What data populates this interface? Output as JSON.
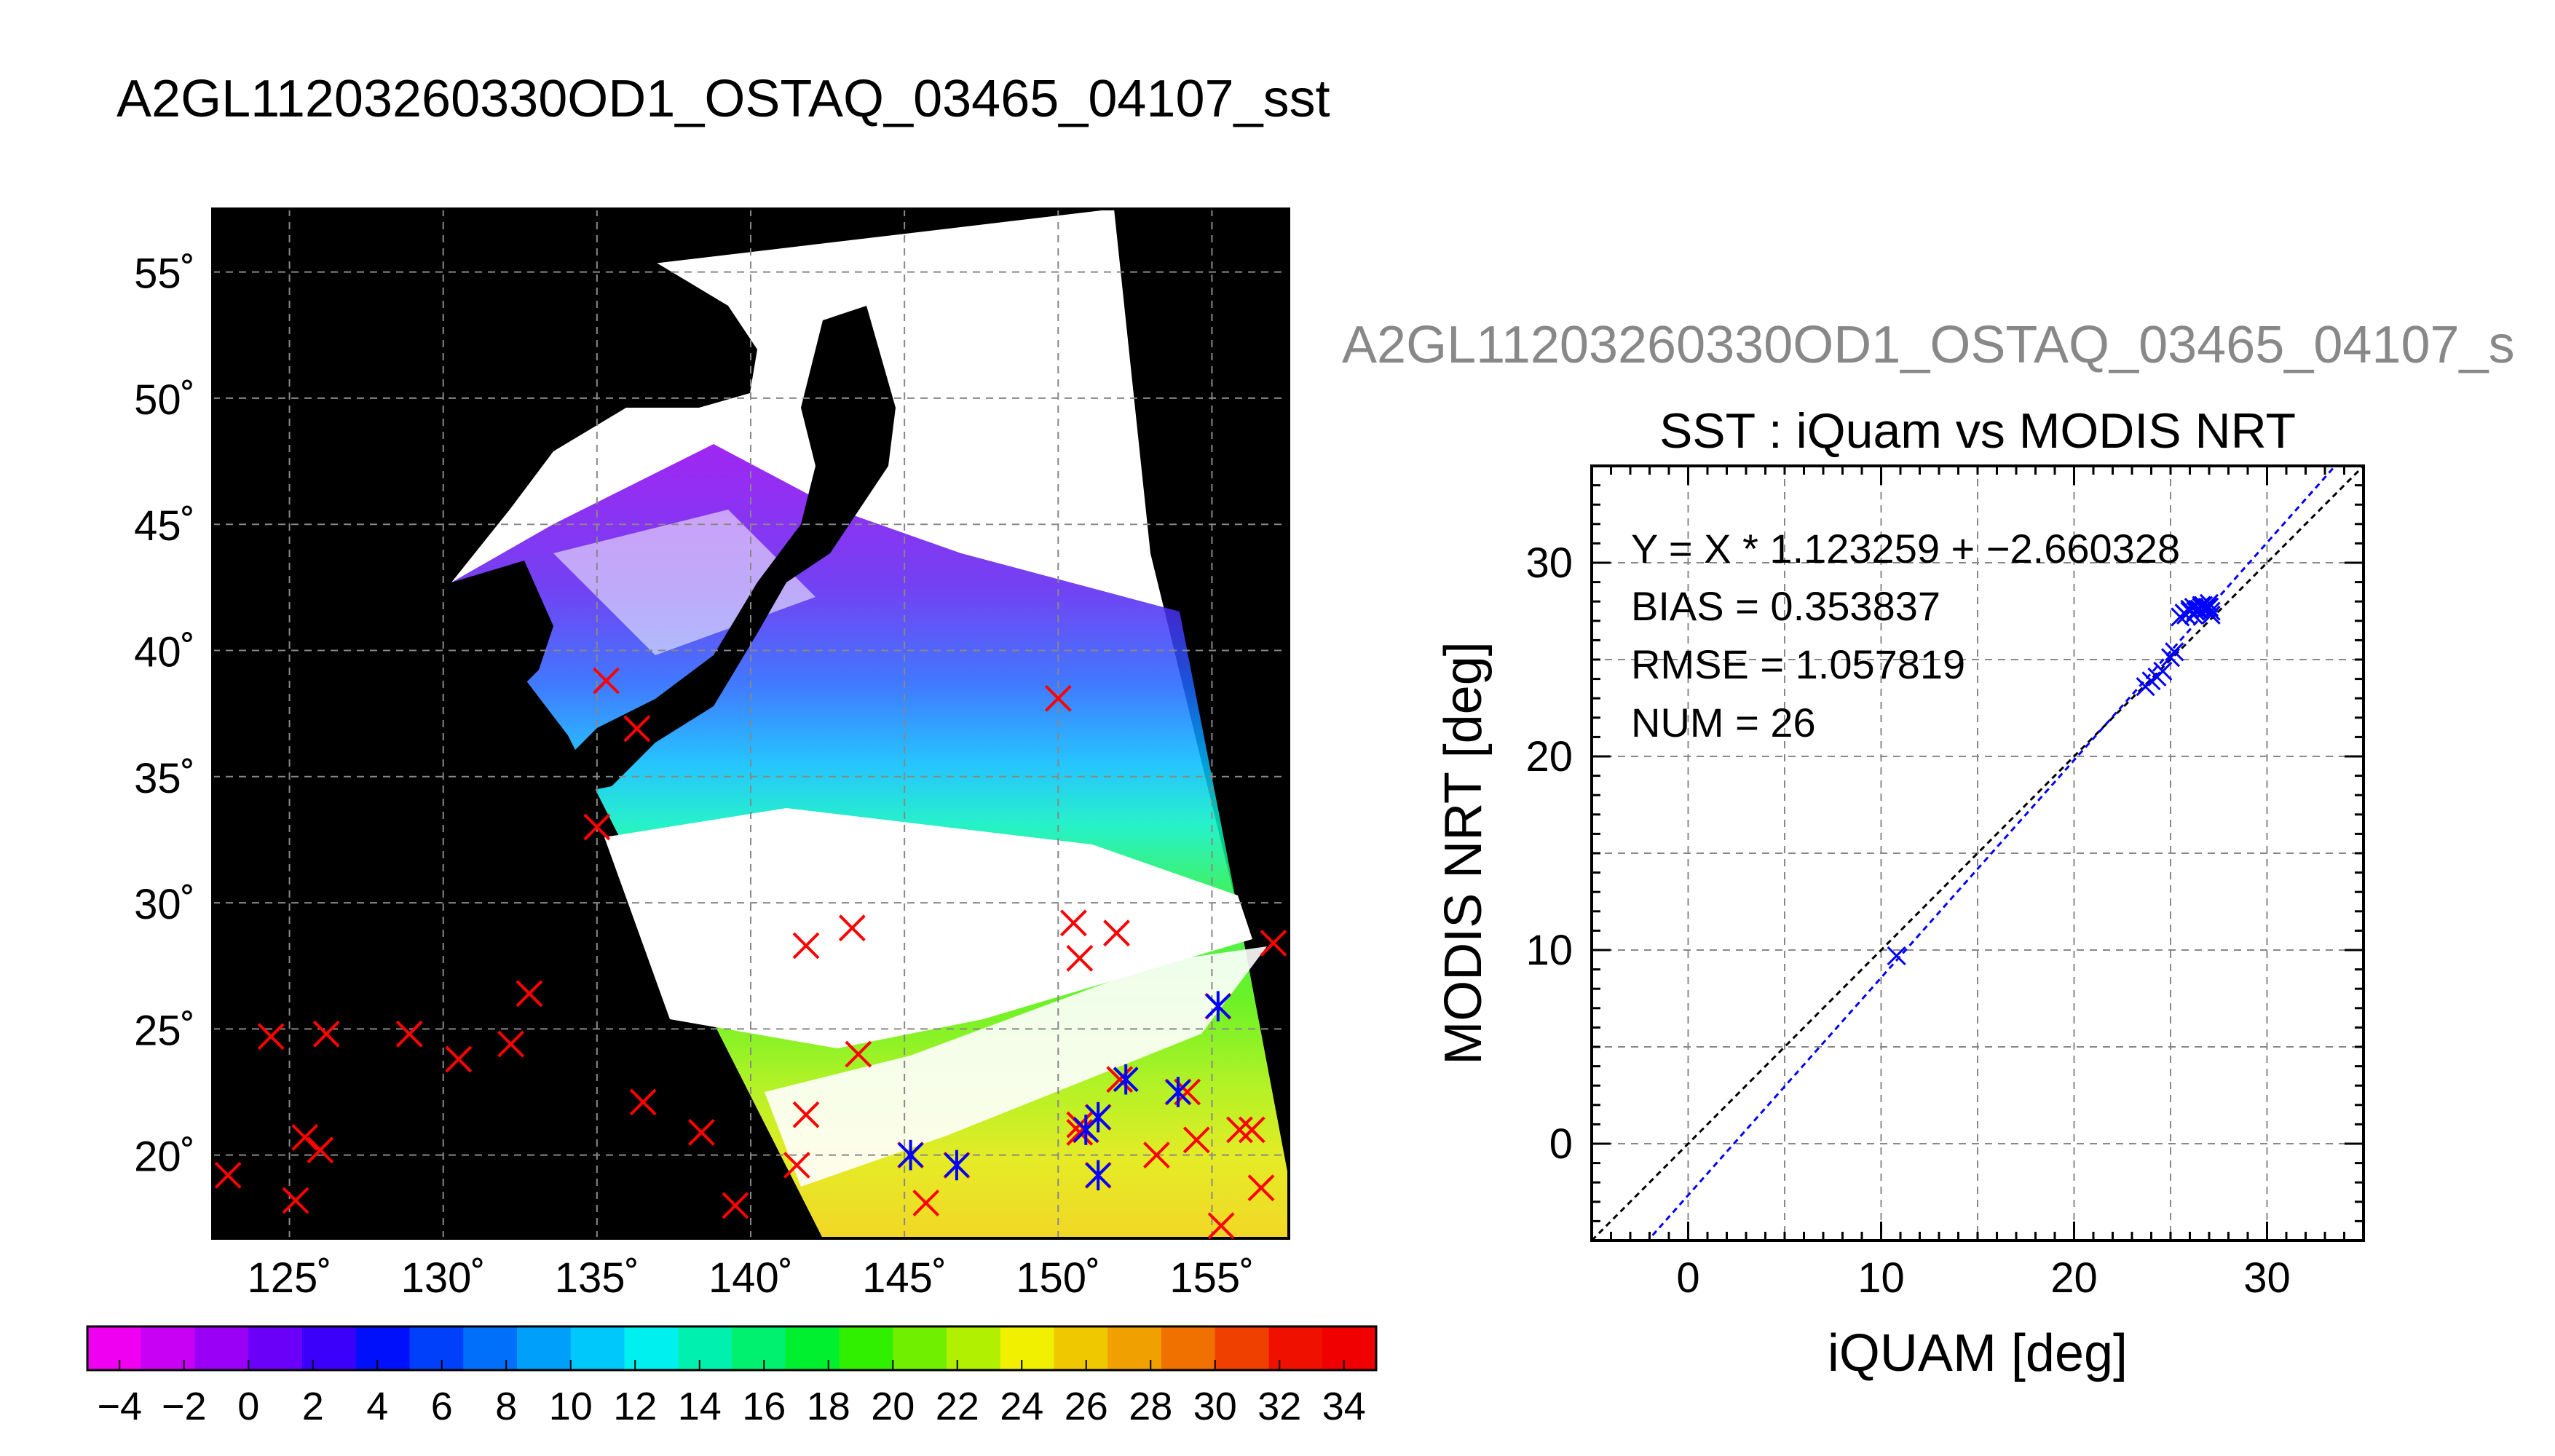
{
  "page_title": "A2GL11203260330OD1_OSTAQ_03465_04107_sst",
  "map": {
    "lat_ticks": [
      "55˚",
      "50˚",
      "45˚",
      "40˚",
      "35˚",
      "30˚",
      "25˚",
      "20˚"
    ],
    "lon_ticks": [
      "125˚",
      "130˚",
      "135˚",
      "140˚",
      "145˚",
      "150˚",
      "155˚"
    ]
  },
  "colorbar": {
    "ticks": [
      "−4",
      "−2",
      "0",
      "2",
      "4",
      "6",
      "8",
      "10",
      "12",
      "14",
      "16",
      "18",
      "20",
      "22",
      "24",
      "26",
      "28",
      "30",
      "32",
      "34"
    ],
    "colors": [
      "#f000f0",
      "#c800f4",
      "#9a00f6",
      "#6a00f8",
      "#3a00fa",
      "#0010fa",
      "#0040fa",
      "#0070fa",
      "#00a0fa",
      "#00c8fa",
      "#00f0f0",
      "#00f0b0",
      "#00f070",
      "#00f030",
      "#30f000",
      "#70f000",
      "#b0f000",
      "#f0f000",
      "#f0c800",
      "#f0a000",
      "#f07000",
      "#f04000",
      "#f01000",
      "#f00000"
    ]
  },
  "scatter": {
    "subtitle": "A2GL11203260330OD1_OSTAQ_03465_04107_s",
    "title": "SST : iQuam vs MODIS NRT",
    "stats": [
      "Y = X * 1.123259 + −2.660328",
      "BIAS = 0.353837",
      "RMSE = 1.057819",
      "NUM = 26"
    ],
    "xlabel": "iQUAM [deg]",
    "ylabel": "MODIS NRT [deg]",
    "xticks": [
      "0",
      "10",
      "20",
      "30"
    ],
    "yticks": [
      "0",
      "10",
      "20",
      "30"
    ]
  },
  "chart_data": [
    {
      "type": "scatter",
      "title": "A2GL11203260330OD1_OSTAQ_03465_04107_sst",
      "xlim": [
        122.5,
        157.5
      ],
      "ylim": [
        16.7,
        57.5
      ],
      "colorbar_range": [
        -5,
        35
      ],
      "series": [
        {
          "marker": "x",
          "color": "#ff0000",
          "x": [
            123.0,
            124.4,
            125.2,
            125.5,
            126.0,
            126.2,
            128.9,
            130.5,
            132.2,
            132.8,
            135.0,
            135.3,
            136.3,
            136.5,
            138.4,
            139.5,
            141.5,
            141.8,
            141.8,
            143.3,
            143.5,
            145.2,
            145.7,
            146.7,
            150.0,
            150.5,
            150.7,
            150.7,
            150.7,
            150.9,
            151.3,
            151.3,
            151.9,
            152.0,
            153.2,
            153.9,
            154.2,
            154.5,
            155.2,
            155.3,
            155.9,
            156.3,
            156.6,
            157.0
          ],
          "y": [
            19.2,
            24.7,
            18.2,
            20.7,
            20.2,
            24.8,
            24.8,
            23.8,
            24.4,
            26.4,
            33.0,
            38.8,
            36.9,
            22.1,
            20.9,
            18.0,
            19.6,
            28.3,
            21.6,
            29.0,
            24.0,
            20.0,
            18.1,
            19.6,
            38.1,
            29.2,
            27.8,
            21.2,
            20.9,
            21.0,
            21.5,
            19.2,
            28.8,
            23.0,
            20.0,
            22.5,
            22.5,
            20.6,
            25.9,
            17.2,
            21.0,
            21.0,
            18.7,
            28.4
          ]
        },
        {
          "marker": "asterisk",
          "color": "#0000ff",
          "x": [
            145.2,
            146.7,
            150.9,
            151.3,
            151.3,
            152.2,
            153.9,
            155.2
          ],
          "y": [
            20.0,
            19.6,
            21.0,
            21.5,
            19.2,
            23.0,
            22.5,
            25.9
          ]
        }
      ]
    },
    {
      "type": "scatter",
      "title": "SST : iQuam vs MODIS NRT",
      "xlabel": "iQUAM [deg]",
      "ylabel": "MODIS NRT [deg]",
      "xlim": [
        -5,
        35
      ],
      "ylim": [
        -5,
        35
      ],
      "fit": {
        "slope": 1.123259,
        "intercept": -2.660328
      },
      "series": [
        {
          "marker": "x",
          "color": "#0000ff",
          "x": [
            10.8,
            23.7,
            24.0,
            24.3,
            24.6,
            25.0,
            25.2,
            25.5,
            25.7,
            26.0,
            26.2,
            26.4,
            26.6,
            26.8,
            27.0,
            27.1,
            25.8,
            26.2,
            26.6,
            27.0,
            26.3,
            26.7,
            27.1,
            26.0,
            26.5,
            26.9
          ],
          "y": [
            9.7,
            23.6,
            23.9,
            24.1,
            24.4,
            25.1,
            25.4,
            27.2,
            27.4,
            27.5,
            27.7,
            27.6,
            27.8,
            27.6,
            27.7,
            27.5,
            27.3,
            27.3,
            27.7,
            27.9,
            27.5,
            27.8,
            27.3,
            27.6,
            27.6,
            27.7
          ]
        }
      ]
    }
  ]
}
